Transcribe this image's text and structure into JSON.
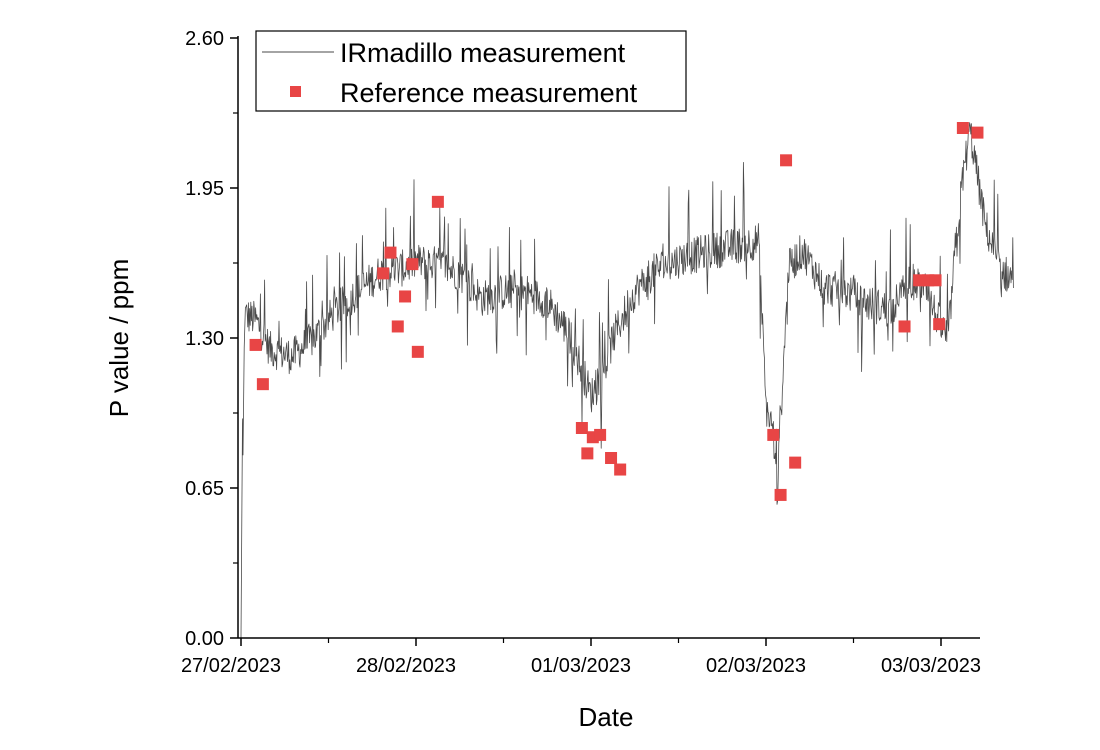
{
  "chart_data": {
    "type": "line+scatter",
    "xlabel": "Date",
    "ylabel": "P value / ppm",
    "x_axis": {
      "start": "27/02/2023",
      "end": "03/03/2023 10:00",
      "ticks": [
        "27/02/2023",
        "28/02/2023",
        "01/03/2023",
        "02/03/2023",
        "03/03/2023"
      ]
    },
    "ylim": [
      0,
      2.6
    ],
    "yticks": [
      "0.00",
      "0.65",
      "1.30",
      "1.95",
      "2.60"
    ],
    "grid": false,
    "legend": {
      "placement": "top-left",
      "entries": [
        "IRmadillo measurement",
        "Reference measurement"
      ]
    },
    "colors": {
      "line": "#4a4a4a",
      "marker": "#e84545"
    },
    "series": [
      {
        "name": "IRmadillo measurement",
        "type": "line",
        "profile": [
          [
            "27/02/2023 00:00",
            0.0
          ],
          [
            "27/02/2023 00:30",
            1.4
          ],
          [
            "27/02/2023 02:00",
            1.38
          ],
          [
            "27/02/2023 04:00",
            1.25
          ],
          [
            "27/02/2023 07:00",
            1.22
          ],
          [
            "27/02/2023 10:00",
            1.3
          ],
          [
            "27/02/2023 13:00",
            1.42
          ],
          [
            "27/02/2023 16:00",
            1.5
          ],
          [
            "27/02/2023 19:00",
            1.58
          ],
          [
            "27/02/2023 22:00",
            1.6
          ],
          [
            "28/02/2023 00:00",
            1.63
          ],
          [
            "28/02/2023 03:00",
            1.62
          ],
          [
            "28/02/2023 06:00",
            1.58
          ],
          [
            "28/02/2023 09:00",
            1.47
          ],
          [
            "28/02/2023 12:00",
            1.5
          ],
          [
            "28/02/2023 15:00",
            1.5
          ],
          [
            "28/02/2023 18:00",
            1.46
          ],
          [
            "28/02/2023 21:00",
            1.32
          ],
          [
            "01/03/2023 00:00",
            1.05
          ],
          [
            "01/03/2023 01:30",
            1.12
          ],
          [
            "01/03/2023 03:00",
            1.3
          ],
          [
            "01/03/2023 06:00",
            1.5
          ],
          [
            "01/03/2023 09:00",
            1.6
          ],
          [
            "01/03/2023 13:00",
            1.65
          ],
          [
            "01/03/2023 17:00",
            1.68
          ],
          [
            "01/03/2023 20:00",
            1.7
          ],
          [
            "01/03/2023 23:00",
            1.72
          ],
          [
            "02/03/2023 00:00",
            1.0
          ],
          [
            "02/03/2023 01:00",
            0.9
          ],
          [
            "02/03/2023 01:30",
            0.6
          ],
          [
            "02/03/2023 03:00",
            1.6
          ],
          [
            "02/03/2023 05:00",
            1.68
          ],
          [
            "02/03/2023 08:00",
            1.52
          ],
          [
            "02/03/2023 11:00",
            1.5
          ],
          [
            "02/03/2023 14:00",
            1.45
          ],
          [
            "02/03/2023 17:00",
            1.42
          ],
          [
            "02/03/2023 20:00",
            1.55
          ],
          [
            "02/03/2023 22:00",
            1.5
          ],
          [
            "03/03/2023 00:00",
            1.35
          ],
          [
            "03/03/2023 01:00",
            1.3
          ],
          [
            "03/03/2023 02:00",
            1.7
          ],
          [
            "03/03/2023 03:00",
            2.0
          ],
          [
            "03/03/2023 04:00",
            2.2
          ],
          [
            "03/03/2023 06:00",
            1.8
          ],
          [
            "03/03/2023 08:00",
            1.6
          ],
          [
            "03/03/2023 10:00",
            1.55
          ]
        ]
      },
      {
        "name": "Reference measurement",
        "type": "scatter",
        "points": [
          [
            "27/02/2023 02:00",
            1.27
          ],
          [
            "27/02/2023 03:00",
            1.1
          ],
          [
            "27/02/2023 19:30",
            1.58
          ],
          [
            "27/02/2023 20:30",
            1.67
          ],
          [
            "27/02/2023 21:30",
            1.35
          ],
          [
            "27/02/2023 22:30",
            1.48
          ],
          [
            "27/02/2023 23:30",
            1.62
          ],
          [
            "28/02/2023 00:15",
            1.24
          ],
          [
            "28/02/2023 03:00",
            1.89
          ],
          [
            "28/02/2023 22:45",
            0.91
          ],
          [
            "28/02/2023 23:30",
            0.8
          ],
          [
            "01/03/2023 00:15",
            0.87
          ],
          [
            "01/03/2023 01:15",
            0.88
          ],
          [
            "01/03/2023 02:45",
            0.78
          ],
          [
            "01/03/2023 04:00",
            0.73
          ],
          [
            "02/03/2023 01:00",
            0.88
          ],
          [
            "02/03/2023 02:00",
            0.62
          ],
          [
            "02/03/2023 02:45",
            2.07
          ],
          [
            "02/03/2023 04:00",
            0.76
          ],
          [
            "02/03/2023 19:00",
            1.35
          ],
          [
            "02/03/2023 21:00",
            1.55
          ],
          [
            "02/03/2023 22:15",
            1.55
          ],
          [
            "02/03/2023 23:15",
            1.55
          ],
          [
            "02/03/2023 23:45",
            1.36
          ],
          [
            "03/03/2023 03:00",
            2.21
          ],
          [
            "03/03/2023 05:00",
            2.19
          ]
        ]
      }
    ]
  }
}
